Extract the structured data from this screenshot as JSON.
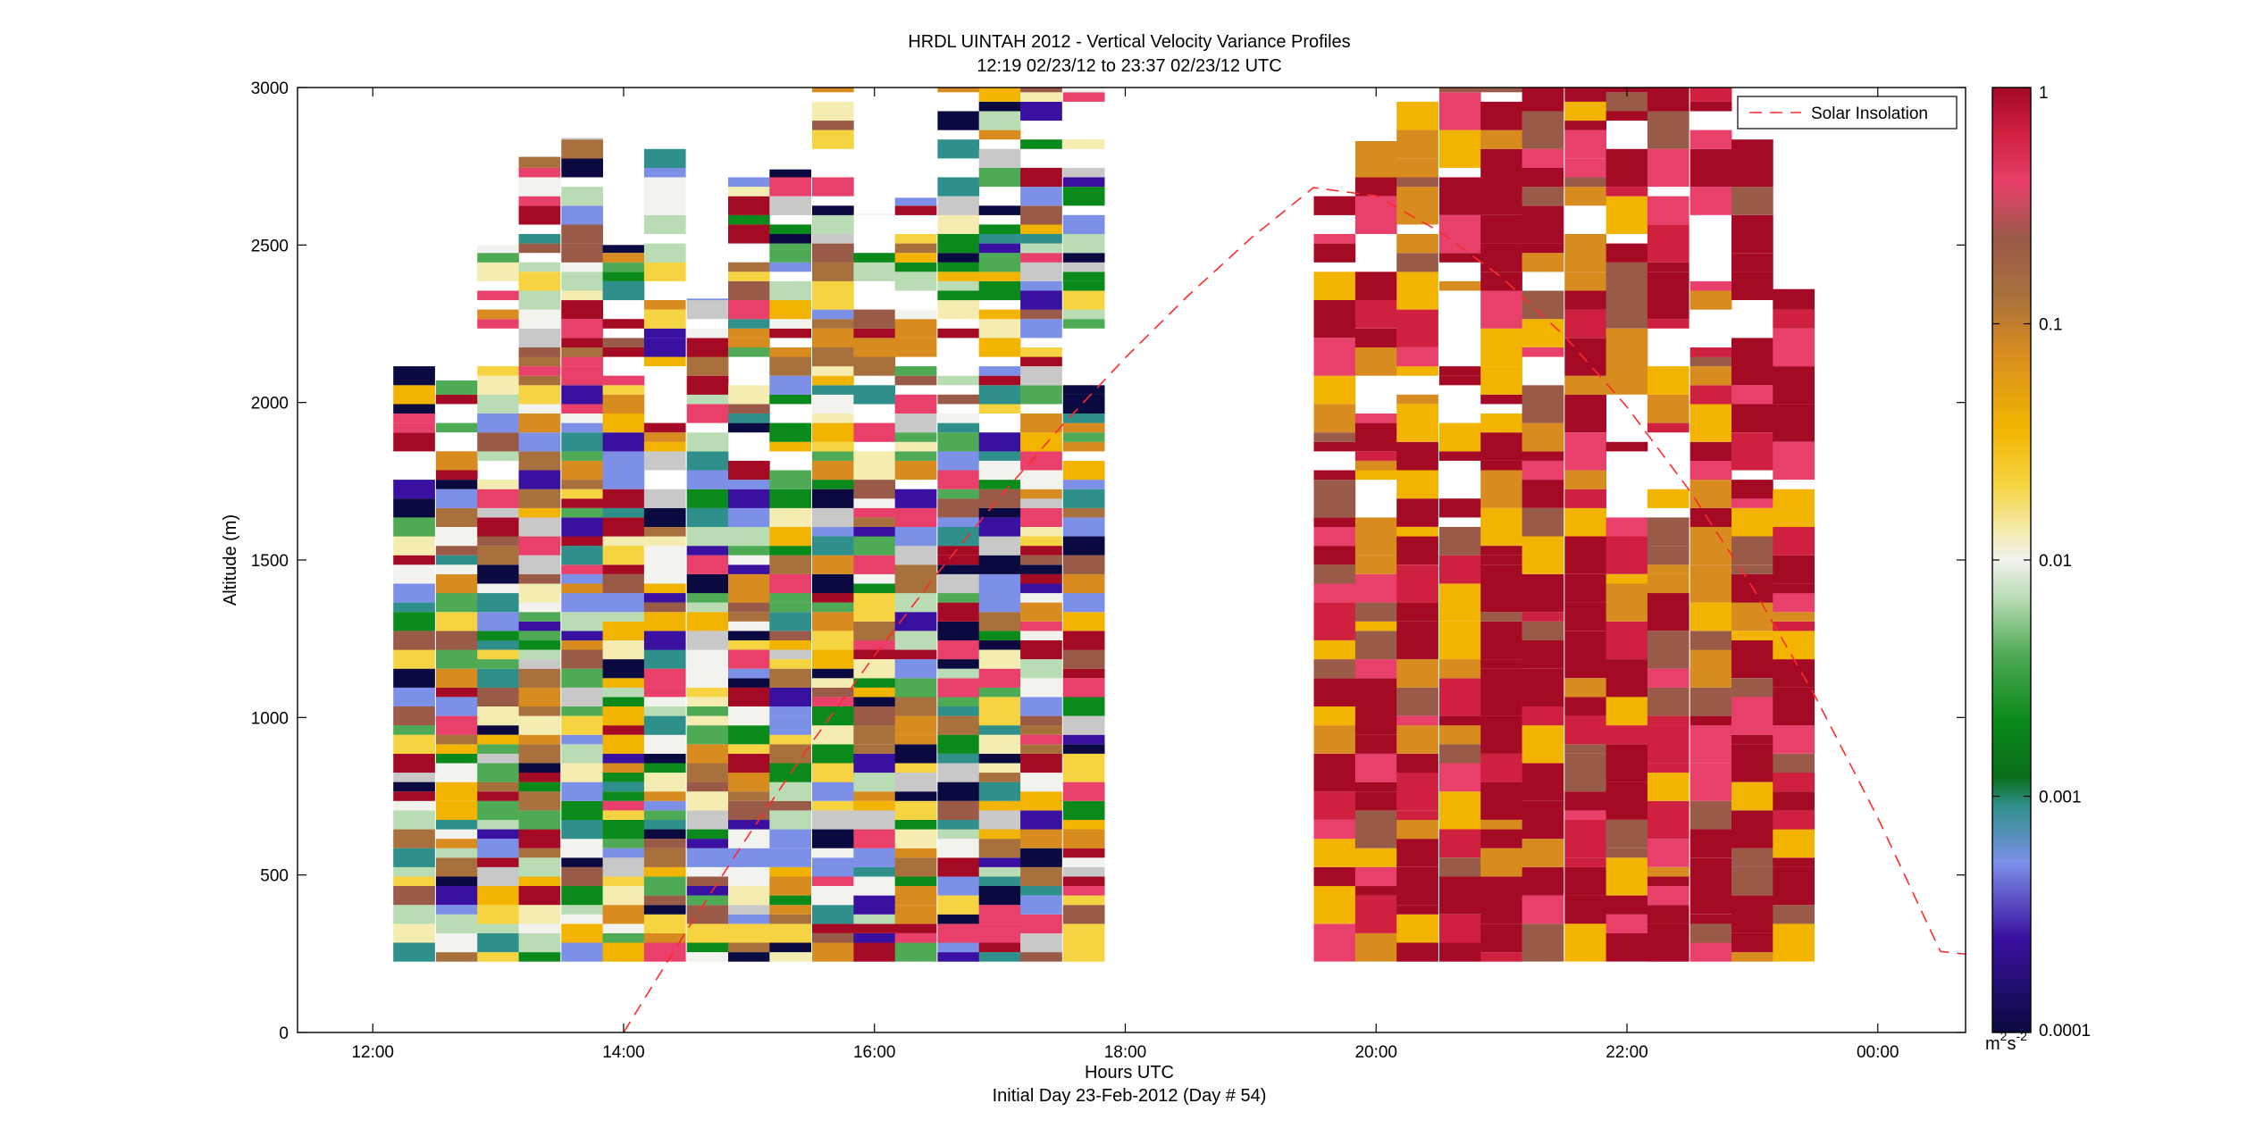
{
  "chart_data": {
    "type": "heatmap",
    "title": "HRDL UINTAH 2012 - Vertical Velocity Variance Profiles",
    "subtitle": "12:19 02/23/12 to 23:37 02/23/12  UTC",
    "xlabel": "Hours UTC",
    "xlabel2": "Initial Day 23-Feb-2012 (Day # 54)",
    "ylabel": "Altitude (m)",
    "xlim": [
      11.4,
      24.7
    ],
    "ylim": [
      0,
      3000
    ],
    "x_ticks": [
      12,
      14,
      16,
      18,
      20,
      22,
      24
    ],
    "x_tick_labels": [
      "12:00",
      "14:00",
      "16:00",
      "18:00",
      "20:00",
      "22:00",
      "00:00"
    ],
    "y_ticks": [
      0,
      500,
      1000,
      1500,
      2000,
      2500,
      3000
    ],
    "y_tick_labels": [
      "0",
      "500",
      "1000",
      "1500",
      "2000",
      "2500",
      "3000"
    ],
    "grid": false,
    "legend": {
      "position": "top-right",
      "entries": [
        "Solar Insolation"
      ]
    },
    "solar_line": {
      "name": "Solar Insolation",
      "style": "dashed",
      "color": "#ff2a2a",
      "x": [
        14.0,
        14.5,
        15.0,
        15.5,
        16.0,
        16.5,
        17.0,
        17.5,
        18.0,
        18.5,
        19.0,
        19.5,
        20.0,
        20.5,
        21.0,
        21.5,
        22.0,
        22.5,
        23.0,
        23.5,
        24.0,
        24.5,
        24.7
      ],
      "y": [
        0,
        322,
        629,
        920,
        1196,
        1456,
        1700,
        1929,
        2142,
        2339,
        2521,
        2682,
        2656,
        2544,
        2398,
        2212,
        1986,
        1720,
        1414,
        1068,
        682,
        257,
        249
      ]
    },
    "colorbar": {
      "scale": "log",
      "range": [
        0.0001,
        1
      ],
      "ticks": [
        0.0001,
        0.001,
        0.01,
        0.1,
        1
      ],
      "tick_labels": [
        "0.0001",
        "0.001",
        "0.01",
        "0.1",
        "1"
      ],
      "unit_base": "m",
      "unit_sup1": "2",
      "unit_mid": "s",
      "unit_sup2": "-2"
    },
    "profiles": {
      "time_step_hours": 0.333,
      "altitude_bottom_m": 225,
      "gate_m": 30,
      "columns": [
        {
          "t": 12.33,
          "top": 2120,
          "level": "mixed",
          "seed": 1
        },
        {
          "t": 12.67,
          "top": 2070,
          "level": "mixed",
          "seed": 2
        },
        {
          "t": 13.0,
          "top": 2500,
          "level": "mixed",
          "seed": 3
        },
        {
          "t": 13.33,
          "top": 2780,
          "level": "mixed",
          "seed": 4
        },
        {
          "t": 13.67,
          "top": 2840,
          "level": "mixed",
          "seed": 5
        },
        {
          "t": 14.0,
          "top": 2500,
          "level": "mixed",
          "seed": 6
        },
        {
          "t": 14.33,
          "top": 2810,
          "level": "mixed",
          "seed": 7
        },
        {
          "t": 14.67,
          "top": 2330,
          "level": "mixed",
          "seed": 8
        },
        {
          "t": 15.0,
          "top": 2740,
          "level": "mixed",
          "seed": 9
        },
        {
          "t": 15.33,
          "top": 2740,
          "level": "mixed",
          "seed": 10
        },
        {
          "t": 15.67,
          "top": 3000,
          "level": "mixed",
          "seed": 11
        },
        {
          "t": 16.0,
          "top": 2600,
          "level": "mixed",
          "seed": 12
        },
        {
          "t": 16.33,
          "top": 2650,
          "level": "mixed",
          "seed": 13
        },
        {
          "t": 16.67,
          "top": 3000,
          "level": "mixed",
          "seed": 14
        },
        {
          "t": 17.0,
          "top": 3000,
          "level": "mixed",
          "seed": 15
        },
        {
          "t": 17.33,
          "top": 3000,
          "level": "mixed",
          "seed": 16
        },
        {
          "t": 17.67,
          "top": 3000,
          "level": "mixed",
          "seed": 17
        },
        {
          "t": 19.67,
          "top": 2680,
          "level": "high",
          "seed": 18
        },
        {
          "t": 20.0,
          "top": 2830,
          "level": "high",
          "seed": 19
        },
        {
          "t": 20.33,
          "top": 3000,
          "level": "high",
          "seed": 20
        },
        {
          "t": 20.67,
          "top": 3000,
          "level": "high",
          "seed": 21
        },
        {
          "t": 21.0,
          "top": 3000,
          "level": "high",
          "seed": 22
        },
        {
          "t": 21.33,
          "top": 3000,
          "level": "high",
          "seed": 23
        },
        {
          "t": 21.67,
          "top": 3000,
          "level": "high",
          "seed": 24
        },
        {
          "t": 22.0,
          "top": 3000,
          "level": "high",
          "seed": 25
        },
        {
          "t": 22.33,
          "top": 3000,
          "level": "high",
          "seed": 26
        },
        {
          "t": 22.67,
          "top": 3000,
          "level": "high",
          "seed": 27
        },
        {
          "t": 23.0,
          "top": 2840,
          "level": "high",
          "seed": 28
        },
        {
          "t": 23.33,
          "top": 2360,
          "level": "high",
          "seed": 29
        }
      ]
    }
  }
}
